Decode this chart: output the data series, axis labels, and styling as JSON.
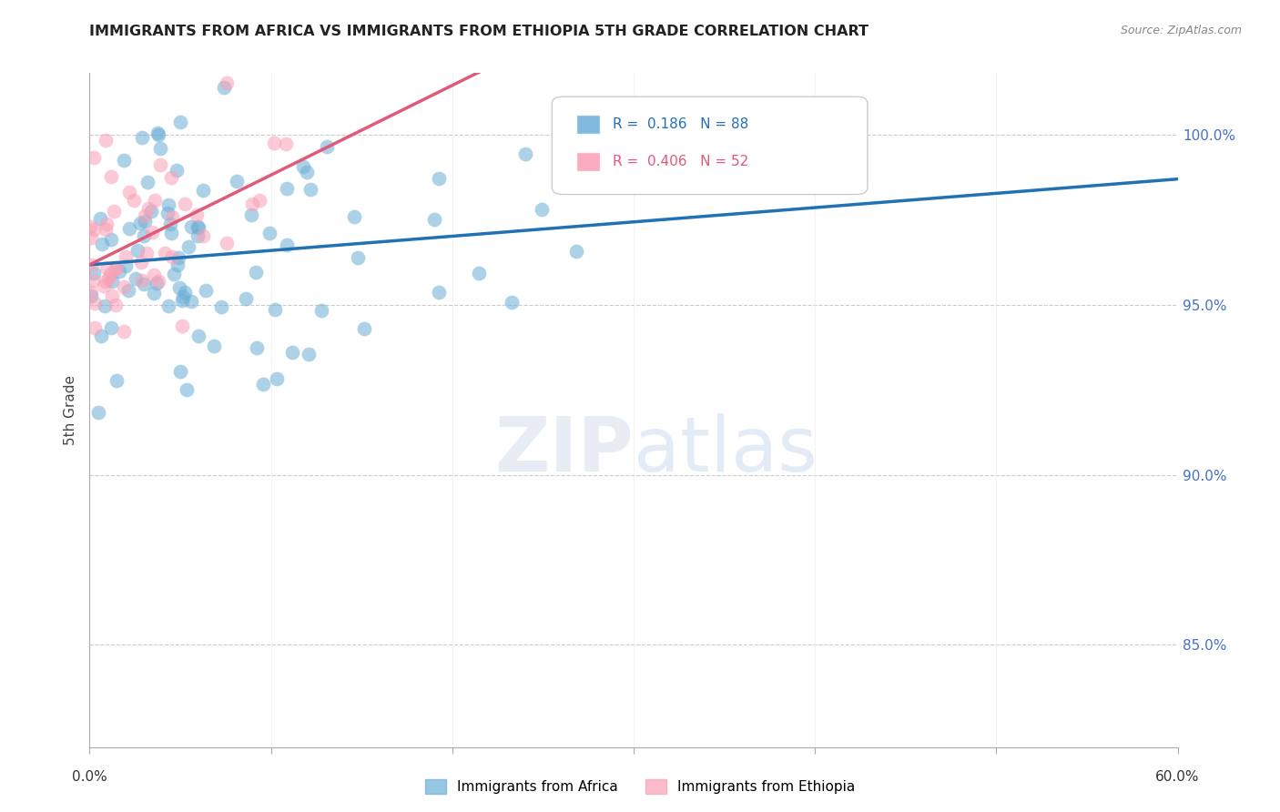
{
  "title": "IMMIGRANTS FROM AFRICA VS IMMIGRANTS FROM ETHIOPIA 5TH GRADE CORRELATION CHART",
  "source": "Source: ZipAtlas.com",
  "ylabel": "5th Grade",
  "africa_R": 0.186,
  "africa_N": 88,
  "ethiopia_R": 0.406,
  "ethiopia_N": 52,
  "africa_color": "#6baed6",
  "ethiopia_color": "#fa9fb5",
  "africa_line_color": "#2171b5",
  "ethiopia_line_color": "#e05a7a",
  "watermark_zip": "ZIP",
  "watermark_atlas": "atlas",
  "background_color": "#ffffff",
  "xlim": [
    0.0,
    60.0
  ],
  "ylim": [
    82.0,
    101.8
  ],
  "yticks": [
    85.0,
    90.0,
    95.0,
    100.0
  ],
  "ytick_labels": [
    "85.0%",
    "90.0%",
    "95.0%",
    "100.0%"
  ]
}
